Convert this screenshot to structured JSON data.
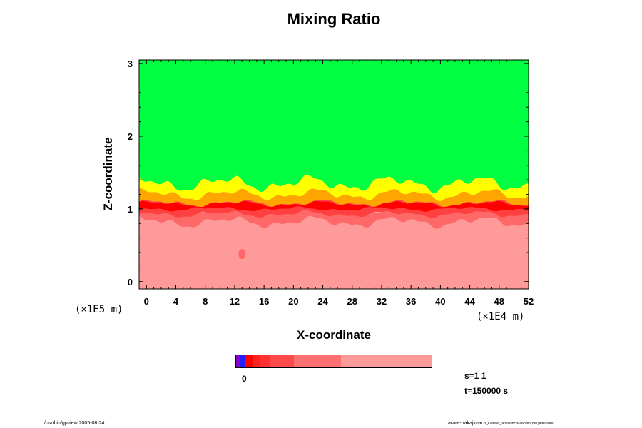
{
  "chart_data": {
    "type": "heatmap",
    "title": "Mixing Ratio",
    "xlabel": "X-coordinate",
    "ylabel": "Z-coordinate",
    "x_unit": "(×1E4 m)",
    "y_unit": "(×1E5 m)",
    "xlim": [
      -1,
      52
    ],
    "ylim": [
      -0.1,
      3.05
    ],
    "x_ticks": [
      "0",
      "4",
      "8",
      "12",
      "16",
      "20",
      "24",
      "28",
      "32",
      "36",
      "40",
      "44",
      "48",
      "52"
    ],
    "y_ticks": [
      "0",
      "1",
      "2",
      "3"
    ],
    "layers_description": "green above ~1.4, yellow/orange transition 1.1-1.5, red band near 1.0, pink below",
    "colors": {
      "green": "#00ff40",
      "yellow": "#ffff00",
      "orange": "#ffa500",
      "red_dark": "#ff0000",
      "red": "#ff4040",
      "salmon": "#ff6868",
      "pink": "#ff9a9a",
      "purple": "#8800cc",
      "blue": "#2020ff"
    },
    "colorbar": {
      "label_zero": "0",
      "segments": [
        {
          "color": "#8800cc",
          "frac": 0.02
        },
        {
          "color": "#2020ff",
          "frac": 0.025
        },
        {
          "color": "#ff0000",
          "frac": 0.04
        },
        {
          "color": "#ff2020",
          "frac": 0.04
        },
        {
          "color": "#ff3030",
          "frac": 0.05
        },
        {
          "color": "#ff4a4a",
          "frac": 0.12
        },
        {
          "color": "#ff7070",
          "frac": 0.24
        },
        {
          "color": "#ff9a9a",
          "frac": 0.465
        }
      ]
    }
  },
  "info": {
    "s": "s=1 1",
    "t": "t=150000 s"
  },
  "footer": {
    "left": "/usr/bin/gpview 2005-08-24",
    "right_main": "arare-nakajima",
    "right_sub": "C3_Kessler_anelastic/MixRatio(z=1)=t=05000"
  }
}
